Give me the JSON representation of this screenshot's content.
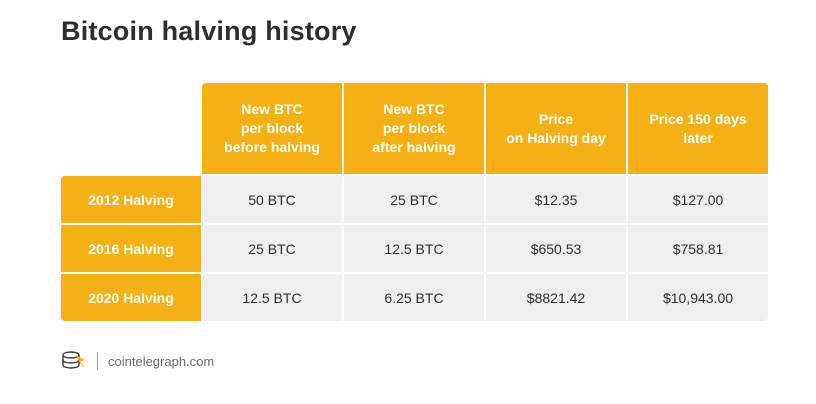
{
  "title": "Bitcoin halving history",
  "table": {
    "headers": [
      "New BTC\nper block\nbefore halving",
      "New BTC\nper block\nafter halving",
      "Price\non Halving day",
      "Price 150 days\nlater"
    ],
    "rows": [
      {
        "label": "2012 Halving",
        "cells": [
          "50 BTC",
          "25 BTC",
          "$12.35",
          "$127.00"
        ]
      },
      {
        "label": "2016 Halving",
        "cells": [
          "25 BTC",
          "12.5 BTC",
          "$650.53",
          "$758.81"
        ]
      },
      {
        "label": "2020 Halving",
        "cells": [
          "12.5 BTC",
          "6.25 BTC",
          "$8821.42",
          "$10,943.00"
        ]
      }
    ]
  },
  "footer": {
    "logo_icon": "cointelegraph-logo-icon",
    "site": "cointelegraph.com"
  },
  "colors": {
    "accent": "#f5b014",
    "cell_bg": "#efefef",
    "text": "#2e2e2e"
  }
}
